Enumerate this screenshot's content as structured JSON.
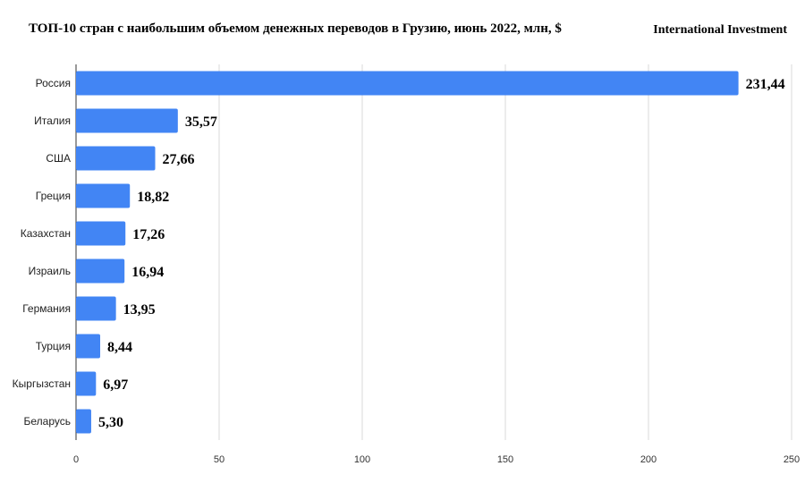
{
  "header": {
    "title": "ТОП-10 стран с наибольшим объемом денежных переводов в Грузию, июнь 2022, млн, $",
    "source": "International Investment"
  },
  "chart_data": {
    "type": "bar",
    "orientation": "horizontal",
    "title": "ТОП-10 стран с наибольшим объемом денежных переводов в Грузию, июнь 2022, млн, $",
    "xlabel": "",
    "ylabel": "",
    "categories": [
      "Россия",
      "Италия",
      "США",
      "Греция",
      "Казахстан",
      "Израиль",
      "Германия",
      "Турция",
      "Кыргызстан",
      "Беларусь"
    ],
    "values": [
      231.44,
      35.57,
      27.66,
      18.82,
      17.26,
      16.94,
      13.95,
      8.44,
      6.97,
      5.3
    ],
    "value_labels": [
      "231,44",
      "35,57",
      "27,66",
      "18,82",
      "17,26",
      "16,94",
      "13,95",
      "8,44",
      "6,97",
      "5,30"
    ],
    "xlim": [
      0,
      250
    ],
    "xticks": [
      0,
      50,
      100,
      150,
      200,
      250
    ],
    "grid": true,
    "legend": "none",
    "bar_color": "#4285f4"
  }
}
